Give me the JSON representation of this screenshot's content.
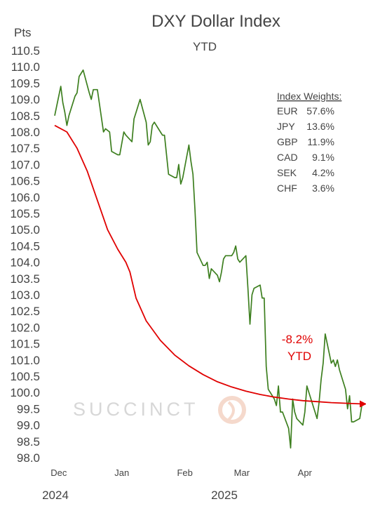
{
  "chart_data": {
    "type": "line",
    "title": "DXY Dollar Index",
    "subtitle": "YTD",
    "ylabel": "Pts",
    "ylim": [
      98.0,
      110.5
    ],
    "y_ticks": [
      "110.5",
      "110.0",
      "109.5",
      "109.0",
      "108.5",
      "108.0",
      "107.5",
      "107.0",
      "106.5",
      "106.0",
      "105.5",
      "105.0",
      "104.5",
      "104.0",
      "103.5",
      "103.0",
      "102.5",
      "102.0",
      "101.5",
      "101.0",
      "100.5",
      "100.0",
      "99.5",
      "99.0",
      "98.5",
      "98.0"
    ],
    "x_ticks": [
      "Dec",
      "Jan",
      "Feb",
      "Mar",
      "Apr"
    ],
    "year_labels": [
      "2024",
      "2025"
    ],
    "grid": false,
    "series": [
      {
        "color": "#3d7f1f",
        "x": [
          "2024-11-29",
          "2024-12-02",
          "2024-12-03",
          "2024-12-04",
          "2024-12-05",
          "2024-12-06",
          "2024-12-09",
          "2024-12-10",
          "2024-12-11",
          "2024-12-12",
          "2024-12-13",
          "2024-12-16",
          "2024-12-17",
          "2024-12-18",
          "2024-12-19",
          "2024-12-20",
          "2024-12-23",
          "2024-12-24",
          "2024-12-26",
          "2024-12-27",
          "2024-12-30",
          "2024-12-31",
          "2025-01-02",
          "2025-01-03",
          "2025-01-06",
          "2025-01-07",
          "2025-01-08",
          "2025-01-09",
          "2025-01-10",
          "2025-01-13",
          "2025-01-14",
          "2025-01-15",
          "2025-01-16",
          "2025-01-17",
          "2025-01-20",
          "2025-01-21",
          "2025-01-22",
          "2025-01-23",
          "2025-01-24",
          "2025-01-27",
          "2025-01-28",
          "2025-01-29",
          "2025-01-30",
          "2025-01-31",
          "2025-02-03",
          "2025-02-04",
          "2025-02-05",
          "2025-02-06",
          "2025-02-07",
          "2025-02-10",
          "2025-02-11",
          "2025-02-12",
          "2025-02-13",
          "2025-02-14",
          "2025-02-17",
          "2025-02-18",
          "2025-02-19",
          "2025-02-20",
          "2025-02-21",
          "2025-02-24",
          "2025-02-25",
          "2025-02-26",
          "2025-02-27",
          "2025-02-28",
          "2025-03-03",
          "2025-03-04",
          "2025-03-05",
          "2025-03-06",
          "2025-03-07",
          "2025-03-10",
          "2025-03-11",
          "2025-03-12",
          "2025-03-13",
          "2025-03-14",
          "2025-03-17",
          "2025-03-18",
          "2025-03-19",
          "2025-03-20",
          "2025-03-21",
          "2025-03-24",
          "2025-03-25",
          "2025-03-26",
          "2025-03-27",
          "2025-03-28",
          "2025-03-31",
          "2025-04-01",
          "2025-04-02",
          "2025-04-03",
          "2025-04-04",
          "2025-04-07",
          "2025-04-08",
          "2025-04-09",
          "2025-04-10",
          "2025-04-11",
          "2025-04-14",
          "2025-04-15",
          "2025-04-16",
          "2025-04-17",
          "2025-04-18",
          "2025-04-21",
          "2025-04-22",
          "2025-04-23",
          "2025-04-24",
          "2025-04-25",
          "2025-04-28",
          "2025-04-29"
        ],
        "values": [
          108.5,
          109.4,
          108.9,
          108.6,
          108.2,
          108.5,
          109.1,
          109.2,
          109.7,
          109.8,
          109.9,
          109.2,
          109.0,
          109.3,
          109.3,
          109.3,
          108.0,
          108.1,
          108.0,
          107.4,
          107.3,
          107.3,
          108.0,
          107.9,
          107.7,
          108.4,
          108.6,
          108.8,
          109.0,
          108.3,
          107.6,
          107.7,
          108.2,
          108.3,
          108.0,
          107.9,
          107.9,
          107.3,
          106.7,
          106.6,
          106.6,
          107.0,
          106.4,
          106.6,
          107.6,
          107.1,
          106.7,
          105.6,
          104.3,
          103.9,
          103.9,
          104.0,
          103.5,
          103.8,
          103.6,
          103.4,
          103.7,
          104.1,
          104.2,
          104.2,
          104.3,
          104.5,
          104.1,
          104.0,
          104.2,
          103.2,
          102.1,
          103.0,
          103.2,
          103.3,
          102.9,
          102.9,
          100.8,
          100.1,
          99.8,
          99.6,
          100.2,
          99.4,
          99.4,
          98.9,
          98.3,
          99.8,
          99.4,
          99.2,
          99.0,
          99.4,
          100.2,
          100.0,
          99.8,
          99.2,
          99.7,
          100.4,
          100.9,
          101.8,
          100.9,
          101.0,
          100.8,
          101.0,
          100.7,
          100.1,
          99.5,
          99.9,
          99.1,
          99.1,
          99.2,
          99.6
        ]
      },
      {
        "color": "#e00000",
        "x": [
          "2024-11-29",
          "2024-12-05",
          "2024-12-10",
          "2024-12-15",
          "2024-12-20",
          "2024-12-25",
          "2024-12-30",
          "2025-01-03",
          "2025-01-05",
          "2025-01-08",
          "2025-01-13",
          "2025-01-20",
          "2025-01-27",
          "2025-02-03",
          "2025-02-10",
          "2025-02-17",
          "2025-02-24",
          "2025-03-03",
          "2025-03-10",
          "2025-03-17",
          "2025-03-24",
          "2025-03-31",
          "2025-04-07",
          "2025-04-14",
          "2025-04-21",
          "2025-04-29"
        ],
        "values": [
          108.2,
          108.0,
          107.5,
          106.8,
          105.9,
          105.0,
          104.4,
          104.0,
          103.7,
          102.9,
          102.2,
          101.6,
          101.15,
          100.82,
          100.55,
          100.33,
          100.17,
          100.04,
          99.94,
          99.86,
          99.8,
          99.75,
          99.72,
          99.69,
          99.67,
          99.65
        ]
      }
    ],
    "annotations": {
      "change_pct": "-8.2%",
      "change_label": "YTD",
      "weights_title": "Index Weights:",
      "weights": [
        {
          "currency": "EUR",
          "pct": "57.6%"
        },
        {
          "currency": "JPY",
          "pct": "13.6%"
        },
        {
          "currency": "GBP",
          "pct": "11.9%"
        },
        {
          "currency": "CAD",
          "pct": "9.1%"
        },
        {
          "currency": "SEK",
          "pct": "4.2%"
        },
        {
          "currency": "CHF",
          "pct": "3.6%"
        }
      ]
    }
  },
  "watermark": "SUCCINCT"
}
